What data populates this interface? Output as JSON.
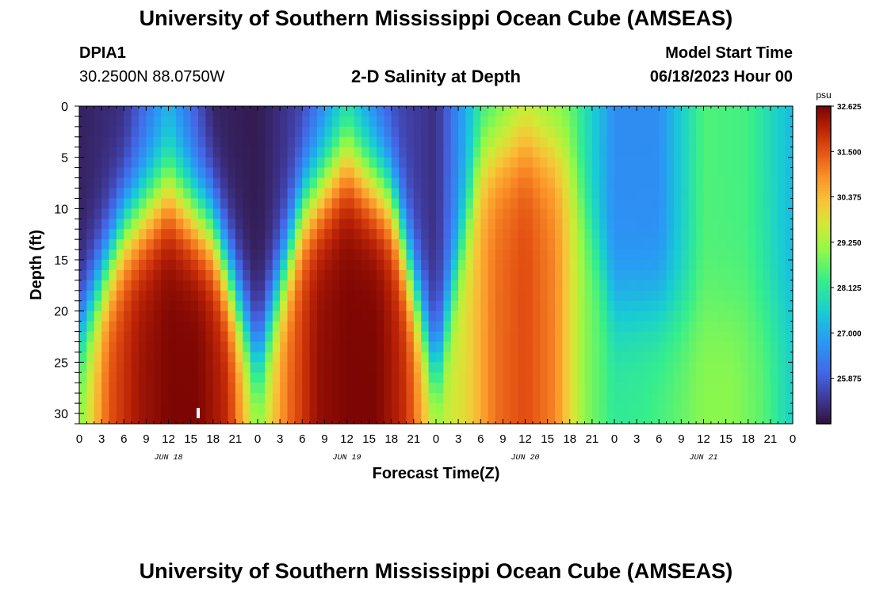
{
  "header": {
    "title": "University of Southern Mississippi Ocean Cube (AMSEAS)",
    "station_id": "DPIA1",
    "station_coords": "30.2500N  88.0750W",
    "plot_title": "2-D Salinity at Depth",
    "model_start_label": "Model Start Time",
    "model_start_date": "06/18/2023 Hour 00"
  },
  "footer": {
    "title": "University of Southern Mississippi Ocean Cube (AMSEAS)"
  },
  "chart_data": {
    "type": "heatmap",
    "title": "2-D Salinity at Depth",
    "xlabel": "Forecast Time(Z)",
    "ylabel": "Depth (ft)",
    "x_range_hours": [
      0,
      96
    ],
    "y_range_ft": [
      0,
      31
    ],
    "x_tick_labels": [
      "0",
      "3",
      "6",
      "9",
      "12",
      "15",
      "18",
      "21",
      "0",
      "3",
      "6",
      "9",
      "12",
      "15",
      "18",
      "21",
      "0",
      "3",
      "6",
      "9",
      "12",
      "15",
      "18",
      "21",
      "0",
      "3",
      "6",
      "9",
      "12",
      "15",
      "18",
      "21",
      "0"
    ],
    "y_ticks": [
      0,
      5,
      10,
      15,
      20,
      25,
      30
    ],
    "day_labels": [
      {
        "label": "JUN 18",
        "hour": 12
      },
      {
        "label": "JUN 19",
        "hour": 36
      },
      {
        "label": "JUN 20",
        "hour": 60
      },
      {
        "label": "JUN 21",
        "hour": 84
      }
    ],
    "colorbar": {
      "unit": "psu",
      "min": 24.75,
      "max": 32.625,
      "tick_labels": [
        "32.625",
        "31.500",
        "30.375",
        "29.250",
        "28.125",
        "27.000",
        "25.875"
      ],
      "tick_values": [
        32.625,
        31.5,
        30.375,
        29.25,
        28.125,
        27.0,
        25.875
      ]
    },
    "bottom_salinity_psu": [
      {
        "hour": 0,
        "value": 29.0
      },
      {
        "hour": 4,
        "value": 31.5
      },
      {
        "hour": 8,
        "value": 32.3
      },
      {
        "hour": 12,
        "value": 32.6
      },
      {
        "hour": 16,
        "value": 32.6
      },
      {
        "hour": 20,
        "value": 32.0
      },
      {
        "hour": 24,
        "value": 29.2
      },
      {
        "hour": 28,
        "value": 31.2
      },
      {
        "hour": 32,
        "value": 32.4
      },
      {
        "hour": 36,
        "value": 32.6
      },
      {
        "hour": 40,
        "value": 32.6
      },
      {
        "hour": 44,
        "value": 31.9
      },
      {
        "hour": 48,
        "value": 29.5
      },
      {
        "hour": 52,
        "value": 29.9
      },
      {
        "hour": 56,
        "value": 31.2
      },
      {
        "hour": 60,
        "value": 31.6
      },
      {
        "hour": 64,
        "value": 31.0
      },
      {
        "hour": 68,
        "value": 29.0
      },
      {
        "hour": 72,
        "value": 28.2
      },
      {
        "hour": 76,
        "value": 28.3
      },
      {
        "hour": 80,
        "value": 28.6
      },
      {
        "hour": 84,
        "value": 29.0
      },
      {
        "hour": 88,
        "value": 29.0
      },
      {
        "hour": 92,
        "value": 28.6
      },
      {
        "hour": 96,
        "value": 27.6
      }
    ],
    "surface_salinity_psu": [
      {
        "hour": 0,
        "value": 25.0
      },
      {
        "hour": 6,
        "value": 25.2
      },
      {
        "hour": 12,
        "value": 27.0
      },
      {
        "hour": 18,
        "value": 25.0
      },
      {
        "hour": 24,
        "value": 24.9
      },
      {
        "hour": 30,
        "value": 25.5
      },
      {
        "hour": 36,
        "value": 27.4
      },
      {
        "hour": 42,
        "value": 25.6
      },
      {
        "hour": 48,
        "value": 25.2
      },
      {
        "hour": 54,
        "value": 28.0
      },
      {
        "hour": 60,
        "value": 29.0
      },
      {
        "hour": 66,
        "value": 28.6
      },
      {
        "hour": 72,
        "value": 26.6
      },
      {
        "hour": 78,
        "value": 26.6
      },
      {
        "hour": 84,
        "value": 28.5
      },
      {
        "hour": 90,
        "value": 28.4
      },
      {
        "hour": 96,
        "value": 27.2
      }
    ],
    "current_time_marker_hour": 16
  }
}
